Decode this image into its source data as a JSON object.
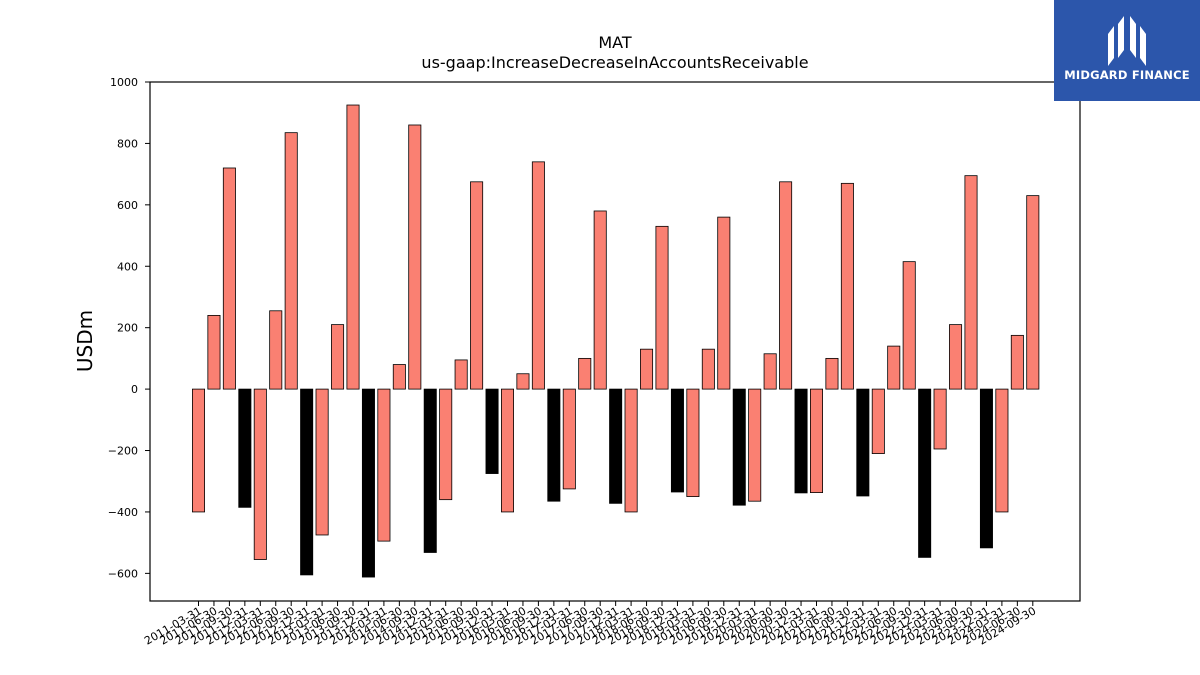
{
  "chart_data": {
    "type": "bar",
    "title": "MAT",
    "subtitle": "us-gaap:IncreaseDecreaseInAccountsReceivable",
    "xlabel": "",
    "ylabel": "USDm",
    "ylim": [
      -690,
      1000
    ],
    "yticks": [
      1000,
      800,
      600,
      400,
      200,
      0,
      -200,
      -400,
      -600
    ],
    "grid": false,
    "colors": {
      "quarterly": "#fa8072",
      "year_end": "#000000",
      "edge": "#000000"
    },
    "categories": [
      "2011-03-31",
      "2011-06-30",
      "2011-09-30",
      "2011-12-31",
      "2012-03-31",
      "2012-06-30",
      "2012-09-30",
      "2012-12-31",
      "2013-03-31",
      "2013-06-30",
      "2013-09-30",
      "2013-12-31",
      "2014-03-31",
      "2014-06-30",
      "2014-09-30",
      "2014-12-31",
      "2015-03-31",
      "2015-06-30",
      "2015-09-30",
      "2015-12-31",
      "2016-03-31",
      "2016-06-30",
      "2016-09-30",
      "2016-12-31",
      "2017-03-31",
      "2017-06-30",
      "2017-09-30",
      "2017-12-31",
      "2018-03-31",
      "2018-06-30",
      "2018-09-30",
      "2018-12-31",
      "2019-03-31",
      "2019-06-30",
      "2019-09-30",
      "2019-12-31",
      "2020-03-31",
      "2020-06-30",
      "2020-09-30",
      "2020-12-31",
      "2021-03-31",
      "2021-06-30",
      "2021-09-30",
      "2021-12-31",
      "2022-03-31",
      "2022-06-30",
      "2022-09-30",
      "2022-12-31",
      "2023-03-31",
      "2023-06-30",
      "2023-09-30",
      "2023-12-31",
      "2024-03-31",
      "2024-06-30",
      "2024-09-30"
    ],
    "values": [
      -400,
      240,
      720,
      -385,
      -555,
      255,
      835,
      -605,
      -475,
      210,
      925,
      -612,
      -495,
      80,
      860,
      -532,
      -360,
      95,
      675,
      -275,
      -400,
      50,
      740,
      -365,
      -325,
      100,
      580,
      -372,
      -400,
      130,
      530,
      -335,
      -350,
      130,
      560,
      -378,
      -365,
      115,
      675,
      -338,
      -337,
      100,
      670,
      -348,
      -210,
      140,
      415,
      -548,
      -195,
      210,
      695,
      -517,
      -400,
      175,
      630
    ],
    "bar_kind": [
      "q",
      "q",
      "q",
      "y",
      "q",
      "q",
      "q",
      "y",
      "q",
      "q",
      "q",
      "y",
      "q",
      "q",
      "q",
      "y",
      "q",
      "q",
      "q",
      "y",
      "q",
      "q",
      "q",
      "y",
      "q",
      "q",
      "q",
      "y",
      "q",
      "q",
      "q",
      "y",
      "q",
      "q",
      "q",
      "y",
      "q",
      "q",
      "q",
      "y",
      "q",
      "q",
      "q",
      "y",
      "q",
      "q",
      "q",
      "y",
      "q",
      "q",
      "q",
      "y",
      "q",
      "q",
      "q"
    ]
  },
  "logo": {
    "text": "MIDGARD FINANCE",
    "icon": "midgard-logo-icon"
  }
}
